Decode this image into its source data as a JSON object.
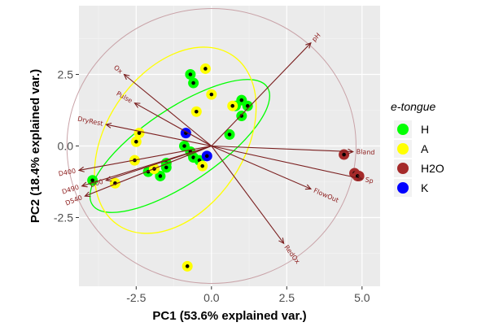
{
  "chart_data": {
    "type": "scatter",
    "subtype": "pca-biplot",
    "xlabel": "PC1 (53.6% explained var.)",
    "ylabel": "PC2 (18.4% explained var.)",
    "xlim": [
      -4.4,
      5.6
    ],
    "ylim": [
      -4.9,
      4.9
    ],
    "xticks": [
      -2.5,
      0.0,
      2.5,
      5.0
    ],
    "xtick_labels": [
      "-2.5",
      "0.0",
      "2.5",
      "5.0"
    ],
    "yticks": [
      -2.5,
      0.0,
      2.5
    ],
    "ytick_labels": [
      "-2.5",
      "0.0",
      "2.5"
    ],
    "grid": true,
    "legend": {
      "title": "e-tongue",
      "position": "right",
      "entries": [
        {
          "name": "H",
          "color": "#00ff00"
        },
        {
          "name": "A",
          "color": "#ffff00"
        },
        {
          "name": "H2O",
          "color": "#a52a2a"
        },
        {
          "name": "K",
          "color": "#0000ff"
        }
      ]
    },
    "series": [
      {
        "name": "H",
        "color": "#00ff00",
        "points": [
          [
            -0.7,
            2.5
          ],
          [
            -0.6,
            2.2
          ],
          [
            1.0,
            1.6
          ],
          [
            1.2,
            1.4
          ],
          [
            0.8,
            1.4
          ],
          [
            1.0,
            1.05
          ],
          [
            0.6,
            0.4
          ],
          [
            -0.9,
            0.0
          ],
          [
            -0.7,
            -0.2
          ],
          [
            -0.6,
            -0.4
          ],
          [
            -0.4,
            -0.5
          ],
          [
            -1.5,
            -0.6
          ],
          [
            -1.5,
            -0.75
          ],
          [
            -1.9,
            -0.8
          ],
          [
            -2.1,
            -0.9
          ],
          [
            -1.7,
            -1.05
          ],
          [
            -3.95,
            -1.2
          ]
        ]
      },
      {
        "name": "A",
        "color": "#ffff00",
        "points": [
          [
            -0.2,
            2.7
          ],
          [
            0.0,
            1.8
          ],
          [
            0.7,
            1.4
          ],
          [
            -0.5,
            1.2
          ],
          [
            -2.4,
            0.45
          ],
          [
            -2.5,
            0.15
          ],
          [
            -2.55,
            -0.5
          ],
          [
            -0.3,
            -0.7
          ],
          [
            -1.9,
            -0.8
          ],
          [
            -3.2,
            -1.3
          ],
          [
            -0.8,
            -4.2
          ]
        ]
      },
      {
        "name": "H2O",
        "color": "#a52a2a",
        "points": [
          [
            4.4,
            -0.3
          ],
          [
            4.75,
            -0.95
          ],
          [
            4.9,
            -1.05
          ],
          [
            4.85,
            -1.05
          ]
        ]
      },
      {
        "name": "K",
        "color": "#0000ff",
        "points": [
          [
            -0.85,
            0.45
          ],
          [
            -0.15,
            -0.35
          ]
        ]
      }
    ],
    "ellipses": [
      {
        "group": "H",
        "center": [
          -1.05,
          0.0
        ],
        "semi_axes": [
          3.5,
          1.3
        ],
        "angle_deg": 34
      },
      {
        "group": "A",
        "center": [
          -1.2,
          0.2
        ],
        "semi_axes": [
          3.4,
          2.4
        ],
        "angle_deg": 56
      }
    ],
    "circle": {
      "center": [
        0,
        0
      ],
      "radius": 4.8
    },
    "loadings": [
      {
        "name": "pH",
        "x": 3.3,
        "y": 3.6
      },
      {
        "name": "Ox",
        "x": -2.9,
        "y": 2.5
      },
      {
        "name": "Pulse",
        "x": -2.55,
        "y": 1.5
      },
      {
        "name": "DryRest",
        "x": -3.5,
        "y": 0.75
      },
      {
        "name": "Bland",
        "x": 4.7,
        "y": -0.2
      },
      {
        "name": "FlowOut",
        "x": 3.3,
        "y": -1.5
      },
      {
        "name": "RedOx",
        "x": 2.4,
        "y": -3.4
      },
      {
        "name": "D400",
        "x": -4.4,
        "y": -0.85
      },
      {
        "name": "D490",
        "x": -4.3,
        "y": -1.4
      },
      {
        "name": "D540",
        "x": -4.2,
        "y": -1.75
      },
      {
        "name": "D00",
        "x": -3.5,
        "y": -1.2
      },
      {
        "name": "Sp",
        "x": 5.0,
        "y": -1.15
      }
    ]
  }
}
